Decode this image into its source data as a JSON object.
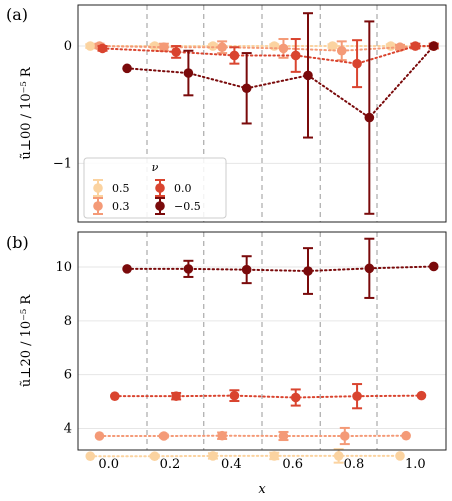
{
  "chart_data": [
    {
      "type": "scatter",
      "panel_label": "(a)",
      "ylabel": "ũ⊥00 / 10⁻⁵ R",
      "xlim": [
        -0.1,
        1.1
      ],
      "ylim": [
        -1.5,
        0.35
      ],
      "yticks": [
        0,
        -1
      ],
      "yticklabels": [
        "0",
        "−1"
      ],
      "vlines": [
        0.125,
        0.31,
        0.5,
        0.69,
        0.875
      ],
      "grid": true,
      "legend": {
        "title": "ν",
        "position": "bottom-left",
        "entries": [
          "0.5",
          "0.3",
          "0.0",
          "−0.5"
        ]
      },
      "series": [
        {
          "name": "0.5",
          "color": "#fbd3a0",
          "x": [
            -0.06,
            0.15,
            0.34,
            0.54,
            0.73,
            0.92,
            1.06
          ],
          "y": [
            0.0,
            0.0,
            0.0,
            0.0,
            0.0,
            0.0,
            0.0
          ],
          "err": [
            0.015,
            0.015,
            0.015,
            0.015,
            0.015,
            0.015,
            0.015
          ]
        },
        {
          "name": "0.3",
          "color": "#f49a77",
          "x": [
            -0.03,
            0.18,
            0.37,
            0.57,
            0.76,
            0.95,
            1.06
          ],
          "y": [
            0.0,
            -0.01,
            -0.01,
            -0.02,
            -0.04,
            -0.01,
            0.0
          ],
          "err": [
            0.02,
            0.03,
            0.05,
            0.08,
            0.08,
            0.02,
            0.02
          ]
        },
        {
          "name": "0.0",
          "color": "#d9442f",
          "x": [
            -0.02,
            0.22,
            0.41,
            0.61,
            0.81,
            1.0,
            1.06
          ],
          "y": [
            -0.02,
            -0.05,
            -0.08,
            -0.08,
            -0.15,
            0.0,
            0.0
          ],
          "err": [
            0.02,
            0.05,
            0.07,
            0.14,
            0.2,
            0.02,
            0.02
          ]
        },
        {
          "name": "−0.5",
          "color": "#7a0a0b",
          "x": [
            0.06,
            0.26,
            0.45,
            0.65,
            0.85,
            1.06
          ],
          "y": [
            -0.19,
            -0.23,
            -0.36,
            -0.25,
            -0.61,
            0.0
          ],
          "err": [
            0.0,
            0.19,
            0.3,
            0.53,
            0.82,
            0.0
          ]
        }
      ]
    },
    {
      "type": "scatter",
      "panel_label": "(b)",
      "ylabel": "ũ⊥20 / 10⁻⁵ R",
      "xlabel": "x",
      "xlim": [
        -0.1,
        1.1
      ],
      "ylim": [
        3.2,
        11.3
      ],
      "xticks": [
        0.0,
        0.2,
        0.4,
        0.6,
        0.8,
        1.0
      ],
      "xticklabels": [
        "0.0",
        "0.2",
        "0.4",
        "0.6",
        "0.8",
        "1.0"
      ],
      "yticks": [
        4,
        6,
        8,
        10
      ],
      "yticklabels": [
        "4",
        "6",
        "8",
        "10"
      ],
      "vlines": [
        0.125,
        0.31,
        0.5,
        0.69,
        0.875
      ],
      "grid": true,
      "series": [
        {
          "name": "0.5",
          "color": "#fbd3a0",
          "x": [
            -0.06,
            0.15,
            0.34,
            0.54,
            0.75,
            0.95
          ],
          "y": [
            2.97,
            2.97,
            2.98,
            2.98,
            2.98,
            2.98
          ],
          "err": [
            0.0,
            0.05,
            0.1,
            0.12,
            0.25,
            0.0
          ]
        },
        {
          "name": "0.3",
          "color": "#f49a77",
          "x": [
            -0.03,
            0.18,
            0.37,
            0.57,
            0.77,
            0.97
          ],
          "y": [
            3.72,
            3.72,
            3.73,
            3.72,
            3.72,
            3.73
          ],
          "err": [
            0.0,
            0.05,
            0.12,
            0.15,
            0.3,
            0.0
          ]
        },
        {
          "name": "0.0",
          "color": "#d9442f",
          "x": [
            0.02,
            0.22,
            0.41,
            0.61,
            0.81,
            1.02
          ],
          "y": [
            5.2,
            5.2,
            5.22,
            5.15,
            5.2,
            5.22
          ],
          "err": [
            0.0,
            0.12,
            0.2,
            0.3,
            0.45,
            0.0
          ]
        },
        {
          "name": "−0.5",
          "color": "#7a0a0b",
          "x": [
            0.06,
            0.26,
            0.45,
            0.65,
            0.85,
            1.06
          ],
          "y": [
            9.93,
            9.93,
            9.9,
            9.85,
            9.95,
            10.02
          ],
          "err": [
            0.0,
            0.3,
            0.5,
            0.85,
            1.1,
            0.0
          ]
        }
      ]
    }
  ]
}
